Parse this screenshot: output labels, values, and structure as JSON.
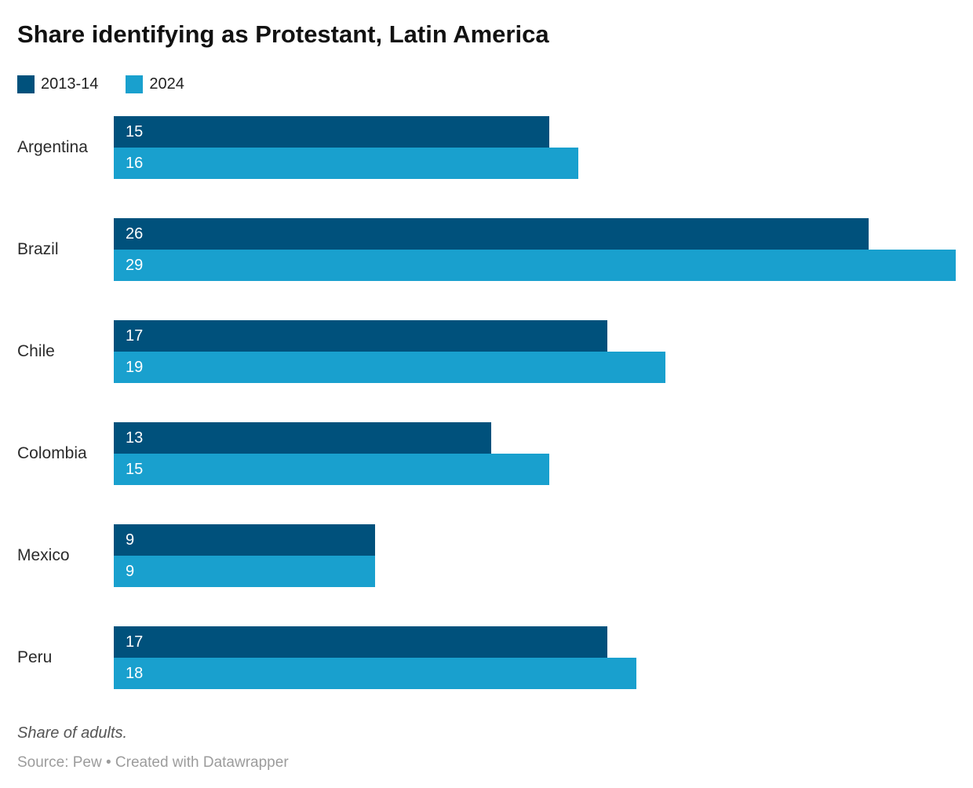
{
  "title": "Share identifying as Protestant, Latin America",
  "legend": {
    "items": [
      {
        "label": "2013-14",
        "color": "#00517c"
      },
      {
        "label": "2024",
        "color": "#19a0ce"
      }
    ]
  },
  "chart_data": {
    "type": "bar",
    "orientation": "horizontal",
    "title": "Share identifying as Protestant, Latin America",
    "categories": [
      "Argentina",
      "Brazil",
      "Chile",
      "Colombia",
      "Mexico",
      "Peru"
    ],
    "series": [
      {
        "name": "2013-14",
        "color": "#00517c",
        "values": [
          15,
          26,
          17,
          13,
          9,
          17
        ]
      },
      {
        "name": "2024",
        "color": "#19a0ce",
        "values": [
          16,
          29,
          19,
          15,
          9,
          18
        ]
      }
    ],
    "value_labels": "inside-start",
    "value_label_color": "#ffffff",
    "xlim": [
      0,
      29.6
    ],
    "grid": false,
    "axis_ticks": "none",
    "legend_position": "top-left"
  },
  "footer": {
    "note": "Share of adults.",
    "source": "Source: Pew • Created with Datawrapper"
  }
}
